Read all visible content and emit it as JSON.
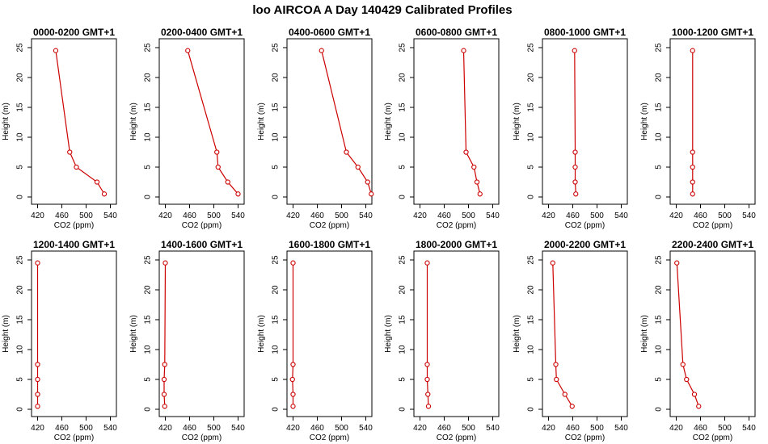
{
  "page_title": "loo AIRCOA A  Day 140429  Calibrated Profiles",
  "series_color": "#cc0000",
  "chart_data": [
    {
      "type": "line",
      "title": "0000-0200 GMT+1",
      "xlabel": "CO2 (ppm)",
      "ylabel": "Height (m)",
      "xlim": [
        410,
        550
      ],
      "ylim": [
        0,
        25
      ],
      "x_ticks": [
        420,
        460,
        500,
        540
      ],
      "y_ticks": [
        0,
        5,
        10,
        15,
        20,
        25
      ],
      "grid": false,
      "x": [
        530,
        518,
        484,
        473,
        450
      ],
      "y": [
        0.5,
        2.5,
        5,
        7.5,
        24.5
      ]
    },
    {
      "type": "line",
      "title": "0200-0400 GMT+1",
      "xlabel": "CO2 (ppm)",
      "ylabel": "Height (m)",
      "xlim": [
        410,
        550
      ],
      "ylim": [
        0,
        25
      ],
      "x_ticks": [
        420,
        460,
        500,
        540
      ],
      "y_ticks": [
        0,
        5,
        10,
        15,
        20,
        25
      ],
      "grid": false,
      "x": [
        540,
        523,
        507,
        505,
        457
      ],
      "y": [
        0.5,
        2.5,
        5,
        7.5,
        24.5
      ]
    },
    {
      "type": "line",
      "title": "0400-0600 GMT+1",
      "xlabel": "CO2 (ppm)",
      "ylabel": "Height (m)",
      "xlim": [
        410,
        550
      ],
      "ylim": [
        0,
        25
      ],
      "x_ticks": [
        420,
        460,
        500,
        540
      ],
      "y_ticks": [
        0,
        5,
        10,
        15,
        20,
        25
      ],
      "grid": false,
      "x": [
        549,
        543,
        527,
        508,
        467
      ],
      "y": [
        0.5,
        2.5,
        5,
        7.5,
        24.5
      ]
    },
    {
      "type": "line",
      "title": "0600-0800 GMT+1",
      "xlabel": "CO2 (ppm)",
      "ylabel": "Height (m)",
      "xlim": [
        410,
        550
      ],
      "ylim": [
        0,
        25
      ],
      "x_ticks": [
        420,
        460,
        500,
        540
      ],
      "y_ticks": [
        0,
        5,
        10,
        15,
        20,
        25
      ],
      "grid": false,
      "x": [
        519,
        514,
        509,
        496,
        492
      ],
      "y": [
        0.5,
        2.5,
        5,
        7.5,
        24.5
      ]
    },
    {
      "type": "line",
      "title": "0800-1000 GMT+1",
      "xlabel": "CO2 (ppm)",
      "ylabel": "Height (m)",
      "xlim": [
        410,
        550
      ],
      "ylim": [
        0,
        25
      ],
      "x_ticks": [
        420,
        460,
        500,
        540
      ],
      "y_ticks": [
        0,
        5,
        10,
        15,
        20,
        25
      ],
      "grid": false,
      "x": [
        465,
        464,
        464,
        464,
        463
      ],
      "y": [
        0.5,
        2.5,
        5,
        7.5,
        24.5
      ]
    },
    {
      "type": "line",
      "title": "1000-1200 GMT+1",
      "xlabel": "CO2 (ppm)",
      "ylabel": "Height (m)",
      "xlim": [
        410,
        550
      ],
      "ylim": [
        0,
        25
      ],
      "x_ticks": [
        420,
        460,
        500,
        540
      ],
      "y_ticks": [
        0,
        5,
        10,
        15,
        20,
        25
      ],
      "grid": false,
      "x": [
        447,
        447,
        447,
        447,
        447
      ],
      "y": [
        0.5,
        2.5,
        5,
        7.5,
        24.5
      ]
    },
    {
      "type": "line",
      "title": "1200-1400 GMT+1",
      "xlabel": "CO2 (ppm)",
      "ylabel": "Height (m)",
      "xlim": [
        410,
        550
      ],
      "ylim": [
        0,
        25
      ],
      "x_ticks": [
        420,
        460,
        500,
        540
      ],
      "y_ticks": [
        0,
        5,
        10,
        15,
        20,
        25
      ],
      "grid": false,
      "x": [
        420,
        420,
        420,
        420,
        420
      ],
      "y": [
        0.5,
        2.5,
        5,
        7.5,
        24.5
      ]
    },
    {
      "type": "line",
      "title": "1400-1600 GMT+1",
      "xlabel": "CO2 (ppm)",
      "ylabel": "Height (m)",
      "xlim": [
        410,
        550
      ],
      "ylim": [
        0,
        25
      ],
      "x_ticks": [
        420,
        460,
        500,
        540
      ],
      "y_ticks": [
        0,
        5,
        10,
        15,
        20,
        25
      ],
      "grid": false,
      "x": [
        419,
        418,
        418,
        419,
        420
      ],
      "y": [
        0.5,
        2.5,
        5,
        7.5,
        24.5
      ]
    },
    {
      "type": "line",
      "title": "1600-1800 GMT+1",
      "xlabel": "CO2 (ppm)",
      "ylabel": "Height (m)",
      "xlim": [
        410,
        550
      ],
      "ylim": [
        0,
        25
      ],
      "x_ticks": [
        420,
        460,
        500,
        540
      ],
      "y_ticks": [
        0,
        5,
        10,
        15,
        20,
        25
      ],
      "grid": false,
      "x": [
        420,
        420,
        419,
        420,
        420
      ],
      "y": [
        0.5,
        2.5,
        5,
        7.5,
        24.5
      ]
    },
    {
      "type": "line",
      "title": "1800-2000 GMT+1",
      "xlabel": "CO2 (ppm)",
      "ylabel": "Height (m)",
      "xlim": [
        410,
        550
      ],
      "ylim": [
        0,
        25
      ],
      "x_ticks": [
        420,
        460,
        500,
        540
      ],
      "y_ticks": [
        0,
        5,
        10,
        15,
        20,
        25
      ],
      "grid": false,
      "x": [
        434,
        433,
        432,
        432,
        432
      ],
      "y": [
        0.5,
        2.5,
        5,
        7.5,
        24.5
      ]
    },
    {
      "type": "line",
      "title": "2000-2200 GMT+1",
      "xlabel": "CO2 (ppm)",
      "ylabel": "Height (m)",
      "xlim": [
        410,
        550
      ],
      "ylim": [
        0,
        25
      ],
      "x_ticks": [
        420,
        460,
        500,
        540
      ],
      "y_ticks": [
        0,
        5,
        10,
        15,
        20,
        25
      ],
      "grid": false,
      "x": [
        459,
        447,
        433,
        432,
        427
      ],
      "y": [
        0.5,
        2.5,
        5,
        7.5,
        24.5
      ]
    },
    {
      "type": "line",
      "title": "2200-2400 GMT+1",
      "xlabel": "CO2 (ppm)",
      "ylabel": "Height (m)",
      "xlim": [
        410,
        550
      ],
      "ylim": [
        0,
        25
      ],
      "x_ticks": [
        420,
        460,
        500,
        540
      ],
      "y_ticks": [
        0,
        5,
        10,
        15,
        20,
        25
      ],
      "grid": false,
      "x": [
        457,
        450,
        437,
        431,
        421
      ],
      "y": [
        0.5,
        2.5,
        5,
        7.5,
        24.5
      ]
    }
  ]
}
